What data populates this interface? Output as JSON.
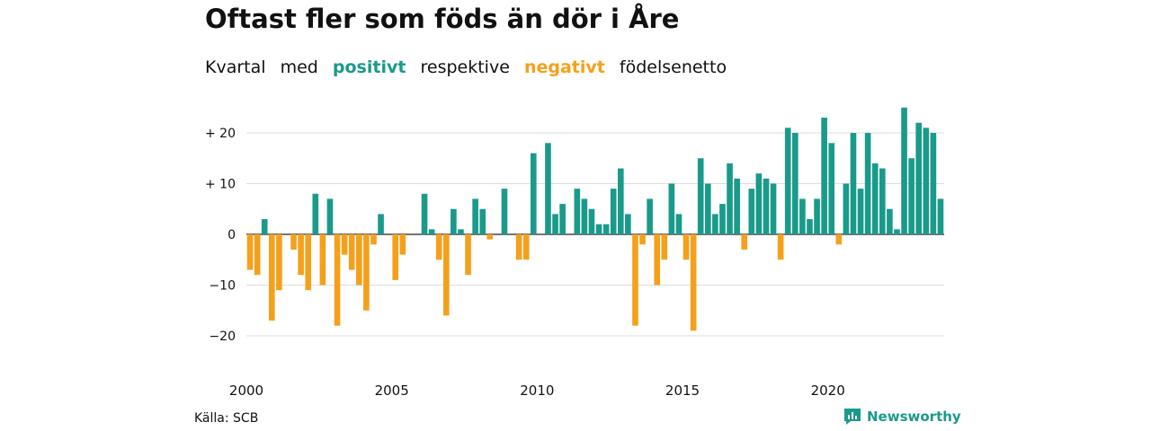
{
  "title": "Oftast fler som föds än dör i Åre",
  "subtitle": {
    "part1": "Kvartal",
    "part2": "med",
    "positive": "positivt",
    "part3": "respektive",
    "negative": "negativt",
    "part4": "födelsenetto"
  },
  "source": "Källa: SCB",
  "brand": "Newsworthy",
  "colors": {
    "positive": "#1a9a8b",
    "negative": "#f5a01b",
    "grid": "#dddddd"
  },
  "chart_data": {
    "type": "bar",
    "ylim": [
      -25,
      25
    ],
    "yticks": [
      {
        "value": 20,
        "label": "+ 20"
      },
      {
        "value": 10,
        "label": "+ 10"
      },
      {
        "value": 0,
        "label": "0"
      },
      {
        "value": -10,
        "label": "−10"
      },
      {
        "value": -20,
        "label": "−20"
      }
    ],
    "xticks": [
      {
        "quarter": "2000Q1",
        "label": "2000"
      },
      {
        "quarter": "2005Q1",
        "label": "2005"
      },
      {
        "quarter": "2010Q1",
        "label": "2010"
      },
      {
        "quarter": "2015Q1",
        "label": "2015"
      },
      {
        "quarter": "2020Q1",
        "label": "2020"
      }
    ],
    "categories": [
      "2000Q1",
      "2000Q2",
      "2000Q3",
      "2000Q4",
      "2001Q1",
      "2001Q2",
      "2001Q3",
      "2001Q4",
      "2002Q1",
      "2002Q2",
      "2002Q3",
      "2002Q4",
      "2003Q1",
      "2003Q2",
      "2003Q3",
      "2003Q4",
      "2004Q1",
      "2004Q2",
      "2004Q3",
      "2004Q4",
      "2005Q1",
      "2005Q2",
      "2005Q3",
      "2005Q4",
      "2006Q1",
      "2006Q2",
      "2006Q3",
      "2006Q4",
      "2007Q1",
      "2007Q2",
      "2007Q3",
      "2007Q4",
      "2008Q1",
      "2008Q2",
      "2008Q3",
      "2008Q4",
      "2009Q1",
      "2009Q2",
      "2009Q3",
      "2009Q4",
      "2010Q1",
      "2010Q2",
      "2010Q3",
      "2010Q4",
      "2011Q1",
      "2011Q2",
      "2011Q3",
      "2011Q4",
      "2012Q1",
      "2012Q2",
      "2012Q3",
      "2012Q4",
      "2013Q1",
      "2013Q2",
      "2013Q3",
      "2013Q4",
      "2014Q1",
      "2014Q2",
      "2014Q3",
      "2014Q4",
      "2015Q1",
      "2015Q2",
      "2015Q3",
      "2015Q4",
      "2016Q1",
      "2016Q2",
      "2016Q3",
      "2016Q4",
      "2017Q1",
      "2017Q2",
      "2017Q3",
      "2017Q4",
      "2018Q1",
      "2018Q2",
      "2018Q3",
      "2018Q4",
      "2019Q1",
      "2019Q2",
      "2019Q3",
      "2019Q4",
      "2020Q1",
      "2020Q2",
      "2020Q3",
      "2020Q4",
      "2021Q1",
      "2021Q2",
      "2021Q3",
      "2021Q4",
      "2022Q1",
      "2022Q2",
      "2022Q3",
      "2022Q4",
      "2023Q1",
      "2023Q2",
      "2023Q3",
      "2023Q4"
    ],
    "values": [
      -7,
      -8,
      3,
      -17,
      -11,
      0,
      -3,
      -8,
      -11,
      8,
      -10,
      7,
      -18,
      -4,
      -7,
      -10,
      -15,
      -2,
      4,
      0,
      -9,
      -4,
      0,
      0,
      8,
      1,
      -5,
      -16,
      5,
      1,
      -8,
      7,
      5,
      -1,
      0,
      9,
      0,
      -5,
      -5,
      16,
      0,
      18,
      4,
      6,
      0,
      9,
      7,
      5,
      2,
      2,
      9,
      13,
      4,
      -18,
      -2,
      7,
      -10,
      -5,
      10,
      4,
      -5,
      -19,
      15,
      10,
      4,
      6,
      14,
      11,
      -3,
      9,
      12,
      11,
      10,
      -5,
      21,
      20,
      7,
      3,
      7,
      23,
      18,
      -2,
      10,
      20,
      9,
      20,
      14,
      13,
      5,
      1,
      25,
      15,
      22,
      21,
      20,
      7
    ]
  }
}
